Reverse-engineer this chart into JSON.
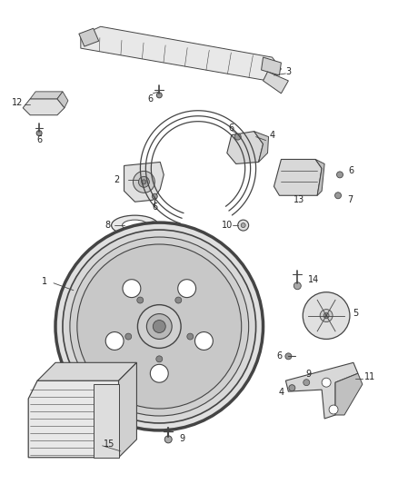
{
  "background_color": "#ffffff",
  "figsize": [
    4.38,
    5.33
  ],
  "dpi": 100,
  "line_color": "#444444",
  "label_color": "#222222",
  "label_fontsize": 7.0
}
